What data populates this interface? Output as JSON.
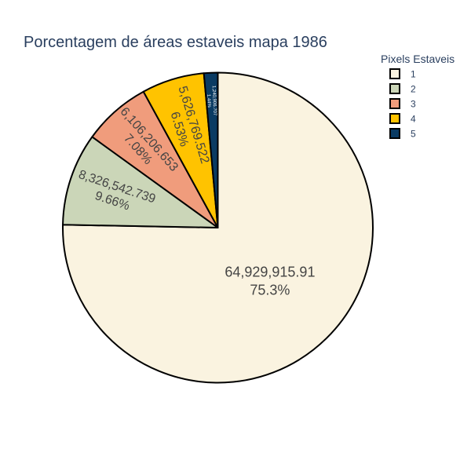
{
  "chart_data": {
    "type": "pie",
    "title": "Porcentagem de áreas estaveis mapa 1986",
    "legend": {
      "title": "Pixels Estaveis",
      "placement": "top-right"
    },
    "slices": [
      {
        "label": "1",
        "value": 64929915.91,
        "value_text": "64,929,915.91",
        "percent_text": "75.3%",
        "color": "#faf3e0"
      },
      {
        "label": "2",
        "value": 8326542.739,
        "value_text": "8,326,542.739",
        "percent_text": "9.66%",
        "color": "#cbd6b8"
      },
      {
        "label": "3",
        "value": 6106206.653,
        "value_text": "6,106,206.653",
        "percent_text": "7.08%",
        "color": "#f09c7c"
      },
      {
        "label": "4",
        "value": 5626769.522,
        "value_text": "5,626,769.522",
        "percent_text": "6.53%",
        "color": "#ffc300"
      },
      {
        "label": "5",
        "value": 1240906.707,
        "value_text": "1,240,906.707",
        "percent_text": "1.44%",
        "color": "#0a3b63"
      }
    ],
    "direction": "clockwise",
    "start": "top",
    "outline_color": "#000000"
  }
}
